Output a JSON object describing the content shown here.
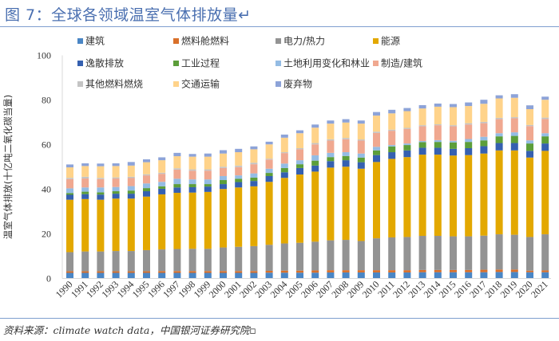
{
  "figure": {
    "title": "图 7：全球各领域温室气体排放量↵",
    "source": "资料来源：climate watch data，中国银河证券研究院▫"
  },
  "chart_data": {
    "type": "bar",
    "stacked": true,
    "title": "全球各领域温室气体排放量",
    "xlabel": "",
    "ylabel": "温室气体排放(十亿吨二氧化碳当量)",
    "ylim": [
      0,
      100
    ],
    "yticks": [
      0,
      20,
      40,
      60,
      80,
      100
    ],
    "grid": false,
    "legend_position": "top",
    "categories": [
      "1990",
      "1991",
      "1992",
      "1993",
      "1994",
      "1995",
      "1996",
      "1997",
      "1998",
      "1999",
      "2000",
      "2001",
      "2002",
      "2003",
      "2004",
      "2005",
      "2006",
      "2007",
      "2008",
      "2009",
      "2010",
      "2011",
      "2012",
      "2013",
      "2014",
      "2015",
      "2016",
      "2017",
      "2018",
      "2019",
      "2020",
      "2021"
    ],
    "series": [
      {
        "name": "建筑",
        "color": "#4a86c5",
        "values": [
          2.5,
          2.5,
          2.5,
          2.5,
          2.5,
          2.5,
          2.5,
          2.5,
          2.5,
          2.5,
          2.5,
          2.5,
          2.5,
          2.6,
          2.6,
          2.6,
          2.6,
          2.7,
          2.7,
          2.7,
          2.7,
          2.7,
          2.7,
          2.8,
          2.8,
          2.8,
          2.8,
          2.8,
          2.9,
          2.9,
          2.8,
          2.8
        ]
      },
      {
        "name": "燃料舱燃料",
        "color": "#d9702a",
        "values": [
          0.7,
          0.7,
          0.7,
          0.7,
          0.7,
          0.7,
          0.8,
          0.8,
          0.8,
          0.8,
          0.8,
          0.8,
          0.8,
          0.8,
          0.9,
          0.9,
          1.0,
          1.0,
          1.0,
          1.0,
          1.0,
          1.0,
          1.0,
          1.0,
          1.0,
          1.0,
          1.0,
          1.1,
          1.1,
          1.1,
          0.7,
          0.8
        ]
      },
      {
        "name": "电力/热力",
        "color": "#939393",
        "values": [
          8.6,
          8.9,
          8.9,
          9.1,
          9.1,
          9.5,
          9.7,
          9.9,
          10.0,
          10.0,
          10.6,
          10.9,
          11.2,
          11.7,
          12.2,
          12.5,
          12.9,
          13.4,
          13.6,
          13.1,
          14.3,
          14.7,
          14.9,
          15.3,
          15.3,
          15.1,
          15.1,
          15.3,
          15.8,
          15.6,
          15.1,
          16.2
        ]
      },
      {
        "name": "能源",
        "color": "#e3a800",
        "values": [
          23.5,
          23.5,
          23.2,
          23.5,
          23.5,
          24.0,
          24.7,
          25.2,
          25.2,
          25.5,
          26.2,
          26.6,
          26.8,
          28.2,
          29.4,
          30.6,
          31.4,
          32.6,
          32.8,
          32.4,
          34.2,
          35.2,
          35.8,
          36.4,
          36.4,
          36.2,
          36.4,
          36.8,
          37.6,
          37.8,
          35.6,
          37.4
        ]
      },
      {
        "name": "逸散排放",
        "color": "#3560b0",
        "values": [
          2.2,
          2.2,
          2.3,
          2.2,
          2.2,
          2.4,
          2.5,
          2.4,
          2.4,
          2.4,
          2.2,
          2.4,
          2.4,
          2.6,
          2.5,
          2.9,
          2.7,
          2.9,
          2.9,
          2.9,
          3.1,
          3.0,
          3.0,
          3.1,
          3.1,
          3.0,
          3.1,
          3.3,
          3.3,
          3.3,
          3.0,
          3.3
        ]
      },
      {
        "name": "工业过程",
        "color": "#5c9e3a",
        "values": [
          0.8,
          1.1,
          1.0,
          1.1,
          1.4,
          1.4,
          1.1,
          1.5,
          1.4,
          1.1,
          1.8,
          1.5,
          1.5,
          1.4,
          1.9,
          1.7,
          2.2,
          1.8,
          1.9,
          2.1,
          2.1,
          2.6,
          2.4,
          2.5,
          2.6,
          2.9,
          2.8,
          2.6,
          3.0,
          3.2,
          3.3,
          3.2
        ]
      },
      {
        "name": "土地利用变化和林业",
        "color": "#94bce4",
        "values": [
          2.1,
          1.9,
          2.2,
          1.9,
          2.0,
          2.1,
          2.0,
          2.4,
          2.1,
          2.1,
          1.8,
          1.5,
          1.9,
          1.9,
          2.0,
          1.8,
          2.4,
          1.9,
          1.7,
          1.8,
          1.6,
          0.6,
          0.7,
          0.5,
          0.8,
          0.7,
          1.3,
          1.6,
          1.4,
          1.6,
          1.4,
          1.4
        ]
      },
      {
        "name": "制造/建筑",
        "color": "#f0a890",
        "values": [
          4.1,
          4.0,
          3.7,
          3.8,
          3.6,
          3.6,
          3.6,
          4.1,
          3.9,
          3.9,
          3.6,
          3.7,
          4.1,
          4.1,
          4.7,
          4.9,
          4.9,
          5.5,
          5.8,
          5.8,
          6.2,
          6.4,
          6.5,
          6.6,
          6.7,
          6.5,
          6.5,
          6.1,
          6.3,
          6.3,
          6.4,
          6.4
        ]
      },
      {
        "name": "其他燃料燃烧",
        "color": "#c4c4c4",
        "values": [
          0.6,
          0.8,
          0.6,
          0.5,
          0.6,
          0.5,
          0.5,
          0.6,
          0.6,
          0.6,
          0.6,
          0.7,
          0.7,
          0.4,
          0.4,
          0.5,
          0.6,
          0.6,
          0.6,
          0.5,
          0.6,
          0.5,
          0.5,
          0.5,
          0.4,
          0.5,
          0.6,
          0.6,
          0.6,
          0.5,
          0.5,
          0.6
        ]
      },
      {
        "name": "交通运输",
        "color": "#ffd38a",
        "values": [
          4.7,
          4.8,
          5.2,
          5.1,
          5.0,
          5.4,
          5.6,
          5.4,
          5.7,
          5.7,
          5.9,
          6.0,
          6.0,
          6.4,
          6.5,
          6.7,
          6.9,
          7.0,
          6.9,
          7.1,
          7.2,
          7.3,
          7.5,
          7.5,
          7.9,
          8.1,
          7.7,
          8.1,
          8.7,
          8.7,
          7.1,
          8.0
        ]
      },
      {
        "name": "废弃物",
        "color": "#8da3d8",
        "values": [
          1.3,
          1.2,
          1.2,
          1.2,
          1.6,
          1.3,
          1.3,
          1.5,
          1.2,
          1.4,
          1.5,
          1.5,
          1.3,
          1.2,
          1.4,
          1.3,
          1.4,
          1.4,
          1.5,
          1.4,
          1.6,
          1.6,
          1.4,
          1.5,
          1.4,
          1.4,
          1.6,
          1.8,
          1.4,
          1.6,
          1.7,
          1.4
        ]
      }
    ]
  }
}
